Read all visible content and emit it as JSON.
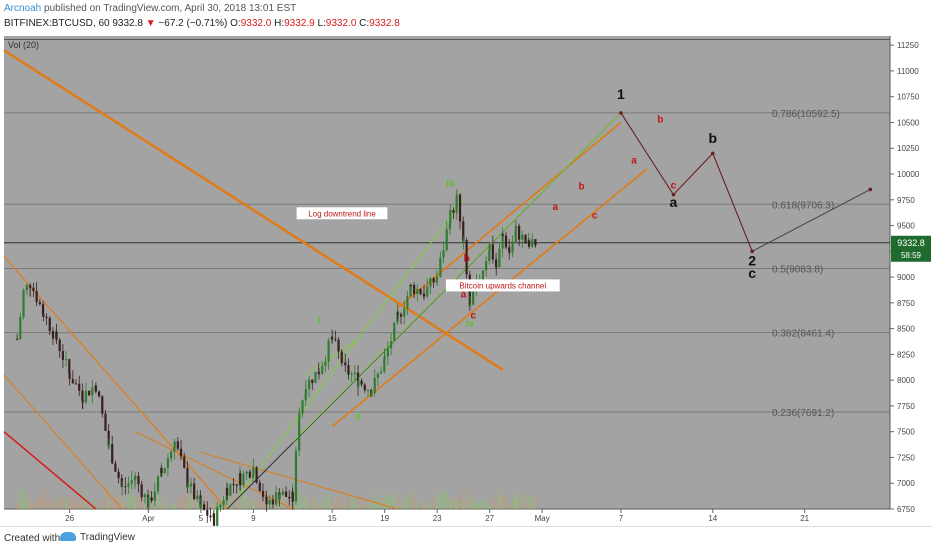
{
  "header": {
    "author": "Arcnoah",
    "published": "published on TradingView.com, April 30, 2018 13:01 EST",
    "symbol": "BITFINEX:BTCUSD, 60",
    "last": "9332.8",
    "change": "−67.2 (−0.71%)",
    "ohlc": {
      "o": "9332.0",
      "h": "9332.9",
      "l": "9332.0",
      "c": "9332.8"
    }
  },
  "footer": {
    "created_with": "Created with",
    "brand": "TradingView"
  },
  "chart_data": {
    "type": "candlestick",
    "indicator_label": "Vol (20)",
    "y_ticks": [
      6750,
      7000,
      7250,
      7500,
      7750,
      8000,
      8250,
      8500,
      8750,
      9000,
      9250,
      9500,
      9750,
      10000,
      10250,
      10500,
      10750,
      11000,
      11250
    ],
    "ylim": [
      6750,
      11300
    ],
    "x_ticks": [
      {
        "label": "26",
        "date": "2018-03-26"
      },
      {
        "label": "Apr",
        "date": "2018-04-01"
      },
      {
        "label": "5",
        "date": "2018-04-05"
      },
      {
        "label": "9",
        "date": "2018-04-09"
      },
      {
        "label": "15",
        "date": "2018-04-15"
      },
      {
        "label": "19",
        "date": "2018-04-19"
      },
      {
        "label": "23",
        "date": "2018-04-23"
      },
      {
        "label": "27",
        "date": "2018-04-27"
      },
      {
        "label": "May",
        "date": "2018-05-01"
      },
      {
        "label": "7",
        "date": "2018-05-07"
      },
      {
        "label": "14",
        "date": "2018-05-14"
      },
      {
        "label": "21",
        "date": "2018-05-21"
      }
    ],
    "price_label": {
      "value": "9332.8",
      "countdown": "58:59"
    },
    "fib_levels": [
      {
        "label": "0.786(10592.5)",
        "value": 10592.5
      },
      {
        "label": "0.618(9706.3)",
        "value": 9706.3
      },
      {
        "label": "0.5(9083.8)",
        "value": 9083.8
      },
      {
        "label": "0.382(8461.4)",
        "value": 8461.4
      },
      {
        "label": "0.236(7691.2)",
        "value": 7691.2
      }
    ],
    "price_path": [
      [
        "2018-03-22",
        8400
      ],
      [
        "2018-03-22 12:00",
        8850
      ],
      [
        "2018-03-23",
        8950
      ],
      [
        "2018-03-24",
        8650
      ],
      [
        "2018-03-25",
        8400
      ],
      [
        "2018-03-26",
        8050
      ],
      [
        "2018-03-27",
        7850
      ],
      [
        "2018-03-28",
        7950
      ],
      [
        "2018-03-29",
        7350
      ],
      [
        "2018-03-30",
        6950
      ],
      [
        "2018-03-31",
        7050
      ],
      [
        "2018-04-01",
        6800
      ],
      [
        "2018-04-02",
        7100
      ],
      [
        "2018-04-03",
        7400
      ],
      [
        "2018-04-04",
        7000
      ],
      [
        "2018-04-05",
        6750
      ],
      [
        "2018-04-06",
        6650
      ],
      [
        "2018-04-07",
        6950
      ],
      [
        "2018-04-08",
        7050
      ],
      [
        "2018-04-09",
        7150
      ],
      [
        "2018-04-10",
        6800
      ],
      [
        "2018-04-11",
        6900
      ],
      [
        "2018-04-12",
        6850
      ],
      [
        "2018-04-12 12:00",
        7700
      ],
      [
        "2018-04-13",
        7950
      ],
      [
        "2018-04-14",
        8100
      ],
      [
        "2018-04-15",
        8400
      ],
      [
        "2018-04-16",
        8100
      ],
      [
        "2018-04-17",
        8000
      ],
      [
        "2018-04-18",
        7900
      ],
      [
        "2018-04-19",
        8200
      ],
      [
        "2018-04-20",
        8600
      ],
      [
        "2018-04-21",
        8900
      ],
      [
        "2018-04-22",
        8850
      ],
      [
        "2018-04-23",
        9000
      ],
      [
        "2018-04-24",
        9600
      ],
      [
        "2018-04-24 12:00",
        9750
      ],
      [
        "2018-04-25",
        9300
      ],
      [
        "2018-04-25 12:00",
        8700
      ],
      [
        "2018-04-26",
        8900
      ],
      [
        "2018-04-27",
        9300
      ],
      [
        "2018-04-27 12:00",
        9100
      ],
      [
        "2018-04-28",
        9400
      ],
      [
        "2018-04-28 12:00",
        9250
      ],
      [
        "2018-04-29",
        9450
      ],
      [
        "2018-04-30",
        9300
      ],
      [
        "2018-04-30 13:00",
        9332.8
      ]
    ],
    "trendlines": [
      {
        "name": "log-downtrend",
        "from": [
          "2018-03-21",
          11200
        ],
        "to": [
          "2018-04-28",
          8100
        ],
        "color": "#e07b16",
        "width": 2.5
      },
      {
        "name": "channel-upper",
        "from": [
          "2018-04-20",
          8700
        ],
        "to": [
          "2018-05-07",
          10500
        ],
        "color": "#e07b16",
        "width": 1.6
      },
      {
        "name": "channel-lower",
        "from": [
          "2018-04-15",
          7550
        ],
        "to": [
          "2018-05-09",
          10050
        ],
        "color": "#e07b16",
        "width": 1.6
      },
      {
        "name": "macro-trend",
        "from": [
          "2018-04-07",
          6750
        ],
        "to": [
          "2018-05-07",
          10592.5
        ],
        "color": "#333333",
        "width": 1
      },
      {
        "name": "green-fan-1",
        "from": [
          "2018-04-08",
          6900
        ],
        "to": [
          "2018-04-25",
          9750
        ],
        "color": "#7bd13a",
        "width": 1
      },
      {
        "name": "green-fan-2",
        "from": [
          "2018-04-12",
          7400
        ],
        "to": [
          "2018-05-07",
          10592.5
        ],
        "color": "#7bd13a",
        "width": 1
      },
      {
        "name": "green-fan-3",
        "from": [
          "2018-04-13",
          8050
        ],
        "to": [
          "2018-04-17",
          8400
        ],
        "color": "#7bd13a",
        "width": 1
      }
    ],
    "old_trend_lines": [
      {
        "from": [
          "2018-03-21",
          9200
        ],
        "to": [
          "2018-04-07",
          6750
        ],
        "color": "#e07b16",
        "width": 1.2
      },
      {
        "from": [
          "2018-03-21",
          8050
        ],
        "to": [
          "2018-03-30",
          6750
        ],
        "color": "#e07b16",
        "width": 1
      },
      {
        "from": [
          "2018-03-21",
          7500
        ],
        "to": [
          "2018-03-28",
          6750
        ],
        "color": "#d81b1b",
        "width": 1.5
      },
      {
        "from": [
          "2018-03-31",
          7500
        ],
        "to": [
          "2018-04-12",
          6750
        ],
        "color": "#e07b16",
        "width": 1
      },
      {
        "from": [
          "2018-04-05",
          7300
        ],
        "to": [
          "2018-04-20",
          6750
        ],
        "color": "#e07b16",
        "width": 1
      }
    ],
    "projection": [
      [
        "2018-05-07",
        10592.5
      ],
      [
        "2018-05-11",
        9800
      ],
      [
        "2018-05-14",
        10200
      ],
      [
        "2018-05-17",
        9250
      ],
      [
        "2018-05-26",
        9850
      ]
    ],
    "wave_labels": [
      {
        "text": "i",
        "x": "2018-04-14",
        "y": 8550,
        "color": "#5fbf2a",
        "size": 10
      },
      {
        "text": "ii",
        "x": "2018-04-17",
        "y": 7620,
        "color": "#5fbf2a",
        "size": 10
      },
      {
        "text": "iii",
        "x": "2018-04-24",
        "y": 9880,
        "color": "#5fbf2a",
        "size": 10
      },
      {
        "text": "iv",
        "x": "2018-04-25 12:00",
        "y": 8520,
        "color": "#5fbf2a",
        "size": 10
      },
      {
        "text": "a",
        "x": "2018-04-25",
        "y": 8800,
        "color": "#c01515",
        "size": 10
      },
      {
        "text": "b",
        "x": "2018-04-25 06:00",
        "y": 9150,
        "color": "#c01515",
        "size": 10
      },
      {
        "text": "c",
        "x": "2018-04-25 18:00",
        "y": 8600,
        "color": "#c01515",
        "size": 10
      },
      {
        "text": "a",
        "x": "2018-05-02",
        "y": 9650,
        "color": "#c01515",
        "size": 10
      },
      {
        "text": "b",
        "x": "2018-05-04",
        "y": 9850,
        "color": "#c01515",
        "size": 10
      },
      {
        "text": "c",
        "x": "2018-05-05",
        "y": 9570,
        "color": "#c01515",
        "size": 10
      },
      {
        "text": "a",
        "x": "2018-05-08",
        "y": 10100,
        "color": "#c01515",
        "size": 10
      },
      {
        "text": "b",
        "x": "2018-05-10",
        "y": 10500,
        "color": "#c01515",
        "size": 10
      },
      {
        "text": "c",
        "x": "2018-05-11",
        "y": 9860,
        "color": "#c01515",
        "size": 10
      },
      {
        "text": "1",
        "x": "2018-05-07",
        "y": 10730,
        "color": "#111111",
        "size": 14
      },
      {
        "text": "a",
        "x": "2018-05-11",
        "y": 9680,
        "color": "#111111",
        "size": 14
      },
      {
        "text": "b",
        "x": "2018-05-14",
        "y": 10300,
        "color": "#111111",
        "size": 14
      },
      {
        "text": "2",
        "x": "2018-05-17",
        "y": 9110,
        "color": "#111111",
        "size": 14
      },
      {
        "text": "c",
        "x": "2018-05-17",
        "y": 8990,
        "color": "#111111",
        "size": 14
      }
    ],
    "annotations": [
      {
        "text": "Log downtrend line",
        "x": "2018-04-15 18:00",
        "y": 9590,
        "color": "#c01515"
      },
      {
        "text": "Bitcoin upwards channel",
        "x": "2018-04-28",
        "y": 8890,
        "color": "#c01515"
      }
    ]
  }
}
